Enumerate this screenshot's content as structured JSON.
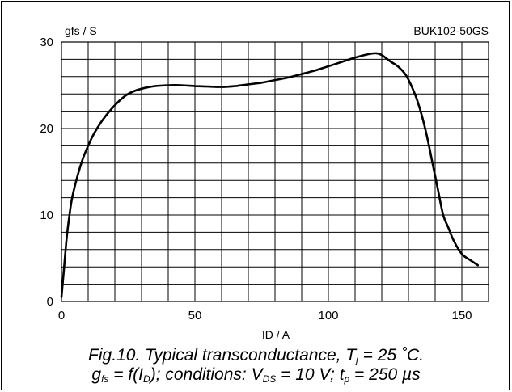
{
  "chart_data": {
    "type": "line",
    "title": "BUK102-50GS",
    "xlabel": "ID / A",
    "ylabel": "gfs / S",
    "xlim": [
      0,
      160
    ],
    "ylim": [
      0,
      30
    ],
    "x_ticks": [
      "0",
      "50",
      "100",
      "150"
    ],
    "y_ticks": [
      "0",
      "10",
      "20",
      "30"
    ],
    "x_grid_step": 10,
    "y_grid_step": 2,
    "grid": true,
    "series": [
      {
        "x": [
          0,
          1,
          2,
          3,
          4,
          6,
          8,
          10,
          12,
          15,
          18,
          21,
          24,
          27,
          30,
          35,
          40,
          45,
          50,
          55,
          60,
          65,
          70,
          75,
          80,
          85,
          90,
          95,
          100,
          105,
          110,
          115,
          118,
          120,
          123,
          126,
          129,
          131,
          133,
          135,
          137,
          139,
          141,
          143,
          145,
          147,
          150,
          153,
          156
        ],
        "y": [
          0.5,
          4,
          7.5,
          10,
          12,
          14.5,
          16.5,
          18,
          19.3,
          20.8,
          22,
          23,
          23.8,
          24.3,
          24.6,
          24.9,
          25,
          25,
          24.9,
          24.85,
          24.8,
          24.9,
          25.1,
          25.3,
          25.6,
          25.9,
          26.3,
          26.7,
          27.2,
          27.7,
          28.2,
          28.6,
          28.7,
          28.5,
          27.8,
          27.2,
          26.2,
          25,
          23.5,
          21.5,
          19,
          16,
          13,
          10,
          8.5,
          7,
          5.5,
          4.8,
          4.2
        ]
      }
    ]
  },
  "caption": {
    "line1_prefix": "Fig.10.   Typical transconductance, T",
    "line1_sub": "j",
    "line1_suffix": " = 25 ˚C.",
    "line2_a": "g",
    "line2_a_sub": "fs",
    "line2_b": " = f(I",
    "line2_b_sub": "D",
    "line2_c": "); conditions: V",
    "line2_c_sub": "DS",
    "line2_d": " = 10 V; t",
    "line2_d_sub": "p",
    "line2_e": " = 250 µs"
  }
}
